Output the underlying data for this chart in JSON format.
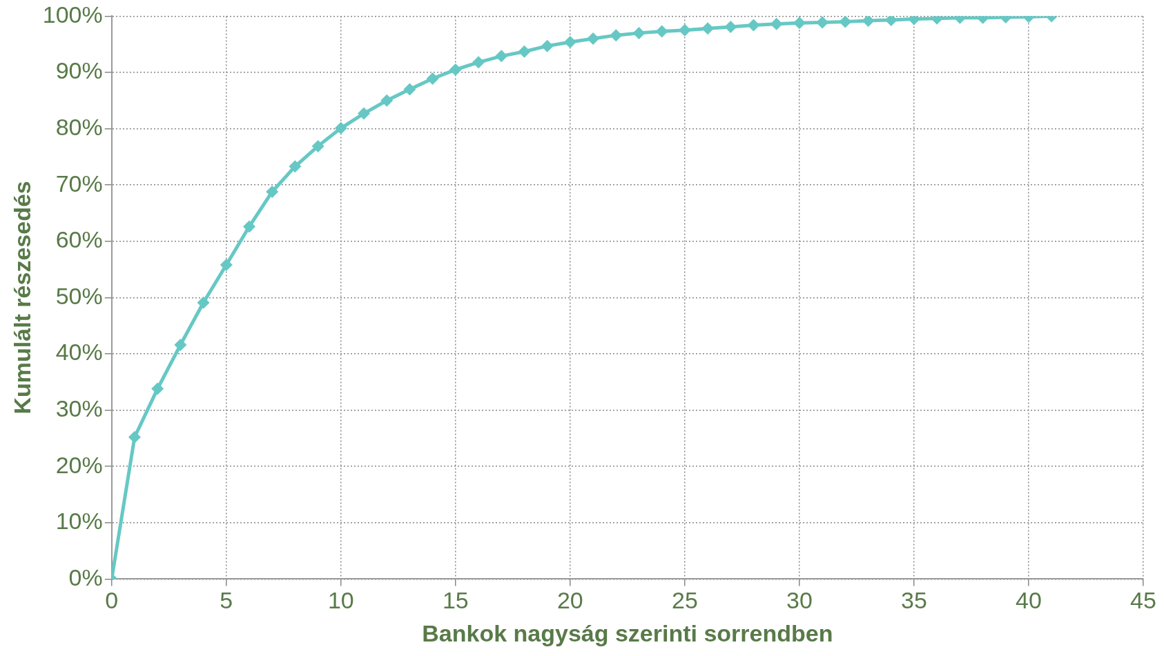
{
  "chart_data": {
    "type": "line",
    "xlabel": "Bankok nagyság szerinti sorrendben",
    "ylabel": "Kumulált részesedés",
    "x": [
      0,
      1,
      2,
      3,
      4,
      5,
      6,
      7,
      8,
      9,
      10,
      11,
      12,
      13,
      14,
      15,
      16,
      17,
      18,
      19,
      20,
      21,
      22,
      23,
      24,
      25,
      26,
      27,
      28,
      29,
      30,
      31,
      32,
      33,
      34,
      35,
      36,
      37,
      38,
      39,
      40,
      41
    ],
    "series": [
      {
        "color": "#66c8c4",
        "values": [
          0,
          25.2,
          33.8,
          41.6,
          49.1,
          55.8,
          62.6,
          68.8,
          73.3,
          76.9,
          80.1,
          82.7,
          85.0,
          87.0,
          88.9,
          90.5,
          91.8,
          92.9,
          93.7,
          94.7,
          95.4,
          96.0,
          96.6,
          97.0,
          97.3,
          97.5,
          97.8,
          98.1,
          98.4,
          98.6,
          98.8,
          98.9,
          99.0,
          99.2,
          99.3,
          99.5,
          99.6,
          99.7,
          99.7,
          99.8,
          99.9,
          100
        ]
      }
    ],
    "xlim": [
      0,
      45
    ],
    "xticks": [
      0,
      5,
      10,
      15,
      20,
      25,
      30,
      35,
      40,
      45
    ],
    "ylim": [
      0,
      100
    ],
    "yticks": [
      {
        "value": 0,
        "label": "0%"
      },
      {
        "value": 10,
        "label": "10%"
      },
      {
        "value": 20,
        "label": "20%"
      },
      {
        "value": 30,
        "label": "30%"
      },
      {
        "value": 40,
        "label": "40%"
      },
      {
        "value": 50,
        "label": "50%"
      },
      {
        "value": 60,
        "label": "60%"
      },
      {
        "value": 70,
        "label": "70%"
      },
      {
        "value": 80,
        "label": "80%"
      },
      {
        "value": 90,
        "label": "90%"
      },
      {
        "value": 100,
        "label": "100%"
      }
    ],
    "grid": true,
    "legend": false,
    "marker": "diamond",
    "line_style": "solid"
  }
}
